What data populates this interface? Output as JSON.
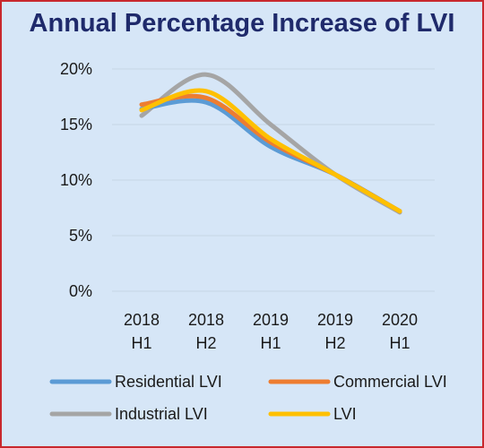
{
  "chart_data": {
    "type": "line",
    "title": "Annual Percentage Increase of LVI",
    "x": [
      "2018 H1",
      "2018 H2",
      "2019 H1",
      "2019 H2",
      "2020 H1"
    ],
    "x_tick_lines": [
      [
        "2018",
        "H1"
      ],
      [
        "2018",
        "H2"
      ],
      [
        "2019",
        "H1"
      ],
      [
        "2019",
        "H2"
      ],
      [
        "2020",
        "H1"
      ]
    ],
    "ylim": [
      0,
      20
    ],
    "y_ticks": [
      0,
      5,
      10,
      15,
      20
    ],
    "y_tick_labels": [
      "0%",
      "5%",
      "10%",
      "15%",
      "20%"
    ],
    "grid": true,
    "legend_position": "bottom",
    "series": [
      {
        "name": "Residential LVI",
        "color": "#5b9bd5",
        "values": [
          16.4,
          17.0,
          13.0,
          10.5,
          7.2
        ]
      },
      {
        "name": "Commercial LVI",
        "color": "#ed7d31",
        "values": [
          16.8,
          17.4,
          13.4,
          10.5,
          7.2
        ]
      },
      {
        "name": "Industrial LVI",
        "color": "#a5a5a5",
        "values": [
          15.8,
          19.5,
          15.0,
          10.5,
          7.1
        ]
      },
      {
        "name": "LVI",
        "color": "#ffc000",
        "values": [
          16.3,
          18.0,
          13.7,
          10.5,
          7.2
        ]
      }
    ]
  }
}
